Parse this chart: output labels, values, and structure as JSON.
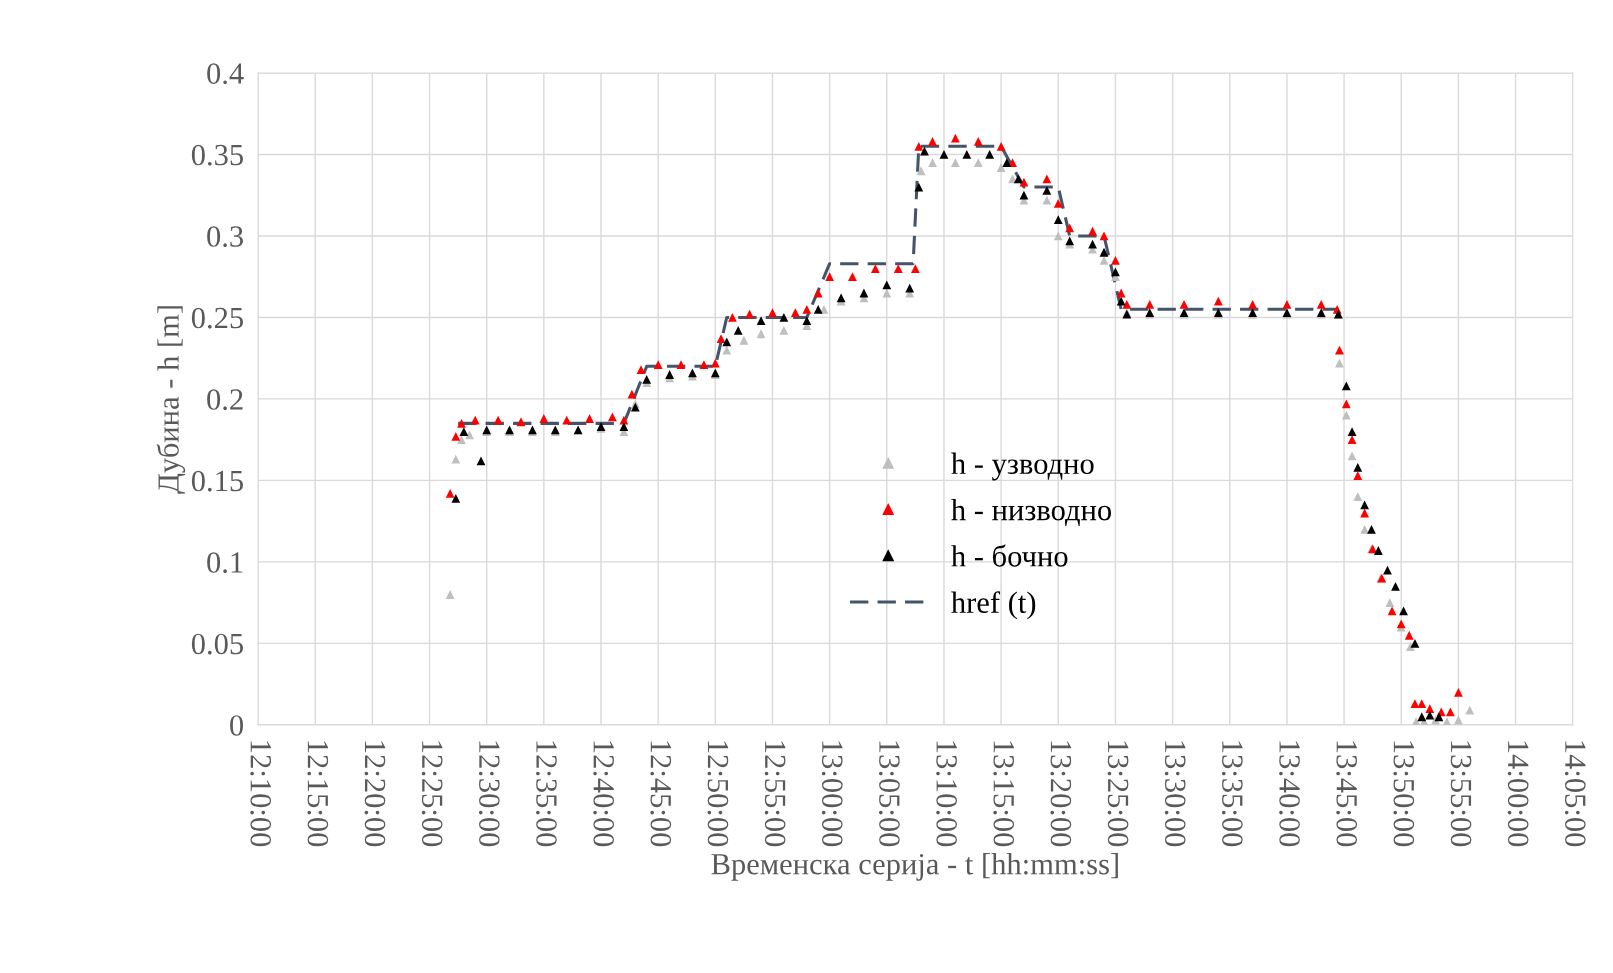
{
  "chart_data": {
    "type": "scatter",
    "xlabel": "Временска серија - t [hh:mm:ss]",
    "ylabel": "Дубина - h [m]",
    "xlim": [
      12.1667,
      14.0833
    ],
    "xticks": [
      {
        "value": 12.1667,
        "label": "12:10:00"
      },
      {
        "value": 12.25,
        "label": "12:15:00"
      },
      {
        "value": 12.3333,
        "label": "12:20:00"
      },
      {
        "value": 12.4167,
        "label": "12:25:00"
      },
      {
        "value": 12.5,
        "label": "12:30:00"
      },
      {
        "value": 12.5833,
        "label": "12:35:00"
      },
      {
        "value": 12.6667,
        "label": "12:40:00"
      },
      {
        "value": 12.75,
        "label": "12:45:00"
      },
      {
        "value": 12.8333,
        "label": "12:50:00"
      },
      {
        "value": 12.9167,
        "label": "12:55:00"
      },
      {
        "value": 13.0,
        "label": "13:00:00"
      },
      {
        "value": 13.0833,
        "label": "13:05:00"
      },
      {
        "value": 13.1667,
        "label": "13:10:00"
      },
      {
        "value": 13.25,
        "label": "13:15:00"
      },
      {
        "value": 13.3333,
        "label": "13:20:00"
      },
      {
        "value": 13.4167,
        "label": "13:25:00"
      },
      {
        "value": 13.5,
        "label": "13:30:00"
      },
      {
        "value": 13.5833,
        "label": "13:35:00"
      },
      {
        "value": 13.6667,
        "label": "13:40:00"
      },
      {
        "value": 13.75,
        "label": "13:45:00"
      },
      {
        "value": 13.8333,
        "label": "13:50:00"
      },
      {
        "value": 13.9167,
        "label": "13:55:00"
      },
      {
        "value": 14.0,
        "label": "14:00:00"
      },
      {
        "value": 14.0833,
        "label": "14:05:00"
      }
    ],
    "ylim": [
      0,
      0.4
    ],
    "yticks": [
      0,
      0.05,
      0.1,
      0.15,
      0.2,
      0.25,
      0.3,
      0.35,
      0.4
    ],
    "grid": true,
    "legend": "center",
    "marker": "triangle",
    "series": [
      {
        "name": "h - узводно",
        "color": "#bfbfbf",
        "x": [
          12.4467,
          12.455,
          12.4633,
          12.475,
          12.5,
          12.5333,
          12.5667,
          12.6,
          12.6333,
          12.6667,
          12.7,
          12.7167,
          12.7333,
          12.7667,
          12.8,
          12.8333,
          12.85,
          12.875,
          12.9,
          12.9333,
          12.9667,
          12.9917,
          13.0167,
          13.05,
          13.0833,
          13.1167,
          13.1333,
          13.15,
          13.1833,
          13.2167,
          13.25,
          13.2667,
          13.2833,
          13.3167,
          13.3333,
          13.35,
          13.3833,
          13.4,
          13.4167,
          13.4333,
          13.4667,
          13.5167,
          13.5667,
          13.6167,
          13.6667,
          13.7167,
          13.7417,
          13.7433,
          13.7533,
          13.7617,
          13.77,
          13.78,
          13.79,
          13.8033,
          13.8167,
          13.8333,
          13.8467,
          13.855,
          13.8667,
          13.8833,
          13.9,
          13.9167,
          13.9333
        ],
        "values": [
          0.08,
          0.163,
          0.175,
          0.178,
          0.18,
          0.18,
          0.18,
          0.18,
          0.181,
          0.182,
          0.18,
          0.197,
          0.21,
          0.213,
          0.214,
          0.215,
          0.23,
          0.236,
          0.24,
          0.242,
          0.245,
          0.255,
          0.26,
          0.262,
          0.265,
          0.265,
          0.34,
          0.345,
          0.345,
          0.345,
          0.342,
          0.335,
          0.322,
          0.322,
          0.3,
          0.295,
          0.292,
          0.285,
          0.275,
          0.253,
          0.252,
          0.252,
          0.252,
          0.252,
          0.252,
          0.252,
          0.252,
          0.222,
          0.19,
          0.165,
          0.14,
          0.12,
          0.108,
          0.09,
          0.075,
          0.06,
          0.048,
          0.002,
          0.002,
          0.003,
          0.002,
          0.003,
          0.009
        ]
      },
      {
        "name": "h - низводно",
        "color": "#ff0000",
        "x": [
          12.4467,
          12.455,
          12.4633,
          12.4833,
          12.5167,
          12.55,
          12.5833,
          12.6167,
          12.65,
          12.6833,
          12.7,
          12.7117,
          12.725,
          12.75,
          12.7833,
          12.8167,
          12.8333,
          12.8417,
          12.8583,
          12.8833,
          12.9167,
          12.95,
          12.9667,
          12.9833,
          13.0,
          13.0333,
          13.0667,
          13.1,
          13.125,
          13.13,
          13.15,
          13.1833,
          13.2167,
          13.25,
          13.2667,
          13.2833,
          13.3167,
          13.3333,
          13.35,
          13.3833,
          13.4,
          13.4167,
          13.425,
          13.4333,
          13.4667,
          13.5167,
          13.5667,
          13.6167,
          13.6667,
          13.7167,
          13.74,
          13.7433,
          13.7533,
          13.7617,
          13.77,
          13.78,
          13.7917,
          13.805,
          13.82,
          13.8333,
          13.845,
          13.8533,
          13.8633,
          13.875,
          13.8917,
          13.905,
          13.9167
        ],
        "values": [
          0.142,
          0.177,
          0.185,
          0.187,
          0.187,
          0.186,
          0.188,
          0.187,
          0.188,
          0.189,
          0.187,
          0.203,
          0.218,
          0.221,
          0.221,
          0.221,
          0.222,
          0.237,
          0.25,
          0.252,
          0.253,
          0.253,
          0.255,
          0.265,
          0.275,
          0.275,
          0.28,
          0.28,
          0.28,
          0.355,
          0.358,
          0.36,
          0.358,
          0.355,
          0.345,
          0.333,
          0.335,
          0.32,
          0.305,
          0.303,
          0.3,
          0.285,
          0.265,
          0.258,
          0.258,
          0.258,
          0.26,
          0.258,
          0.258,
          0.258,
          0.255,
          0.23,
          0.197,
          0.175,
          0.153,
          0.13,
          0.108,
          0.09,
          0.07,
          0.062,
          0.055,
          0.013,
          0.013,
          0.01,
          0.008,
          0.008,
          0.02
        ]
      },
      {
        "name": "h - бочно",
        "color": "#000000",
        "x": [
          12.455,
          12.4667,
          12.4917,
          12.5,
          12.5333,
          12.5667,
          12.6,
          12.6333,
          12.6667,
          12.7,
          12.7167,
          12.7333,
          12.7667,
          12.8,
          12.8333,
          12.85,
          12.8667,
          12.9,
          12.9333,
          12.9667,
          12.9833,
          13.0167,
          13.05,
          13.0833,
          13.1167,
          13.13,
          13.1383,
          13.1667,
          13.2,
          13.2333,
          13.2583,
          13.275,
          13.2833,
          13.3167,
          13.3333,
          13.35,
          13.3833,
          13.4,
          13.4167,
          13.425,
          13.4333,
          13.4667,
          13.5167,
          13.5667,
          13.6167,
          13.6667,
          13.7167,
          13.7417,
          13.7533,
          13.7617,
          13.77,
          13.78,
          13.79,
          13.8,
          13.8133,
          13.825,
          13.8367,
          13.8533,
          13.8633,
          13.875,
          13.8883
        ],
        "values": [
          0.139,
          0.18,
          0.162,
          0.181,
          0.181,
          0.181,
          0.181,
          0.181,
          0.183,
          0.183,
          0.195,
          0.212,
          0.215,
          0.216,
          0.216,
          0.235,
          0.242,
          0.248,
          0.25,
          0.248,
          0.255,
          0.262,
          0.265,
          0.27,
          0.268,
          0.33,
          0.352,
          0.35,
          0.35,
          0.35,
          0.345,
          0.335,
          0.325,
          0.328,
          0.31,
          0.297,
          0.295,
          0.29,
          0.278,
          0.26,
          0.252,
          0.253,
          0.253,
          0.253,
          0.253,
          0.253,
          0.253,
          0.252,
          0.208,
          0.18,
          0.158,
          0.135,
          0.12,
          0.107,
          0.095,
          0.085,
          0.07,
          0.05,
          0.005,
          0.006,
          0.005
        ]
      },
      {
        "name": "href (t)",
        "color": "#44546a",
        "type": "line",
        "line_style": "dashed",
        "marker": "none",
        "x": [
          12.4583,
          12.7,
          12.7333,
          12.8333,
          12.85,
          12.9667,
          13.0,
          13.1217,
          13.13,
          13.25,
          13.2833,
          13.3333,
          13.35,
          13.4,
          13.425,
          13.7417
        ],
        "values": [
          0.185,
          0.185,
          0.22,
          0.22,
          0.25,
          0.25,
          0.283,
          0.283,
          0.355,
          0.355,
          0.33,
          0.33,
          0.3,
          0.3,
          0.255,
          0.255
        ]
      }
    ]
  }
}
